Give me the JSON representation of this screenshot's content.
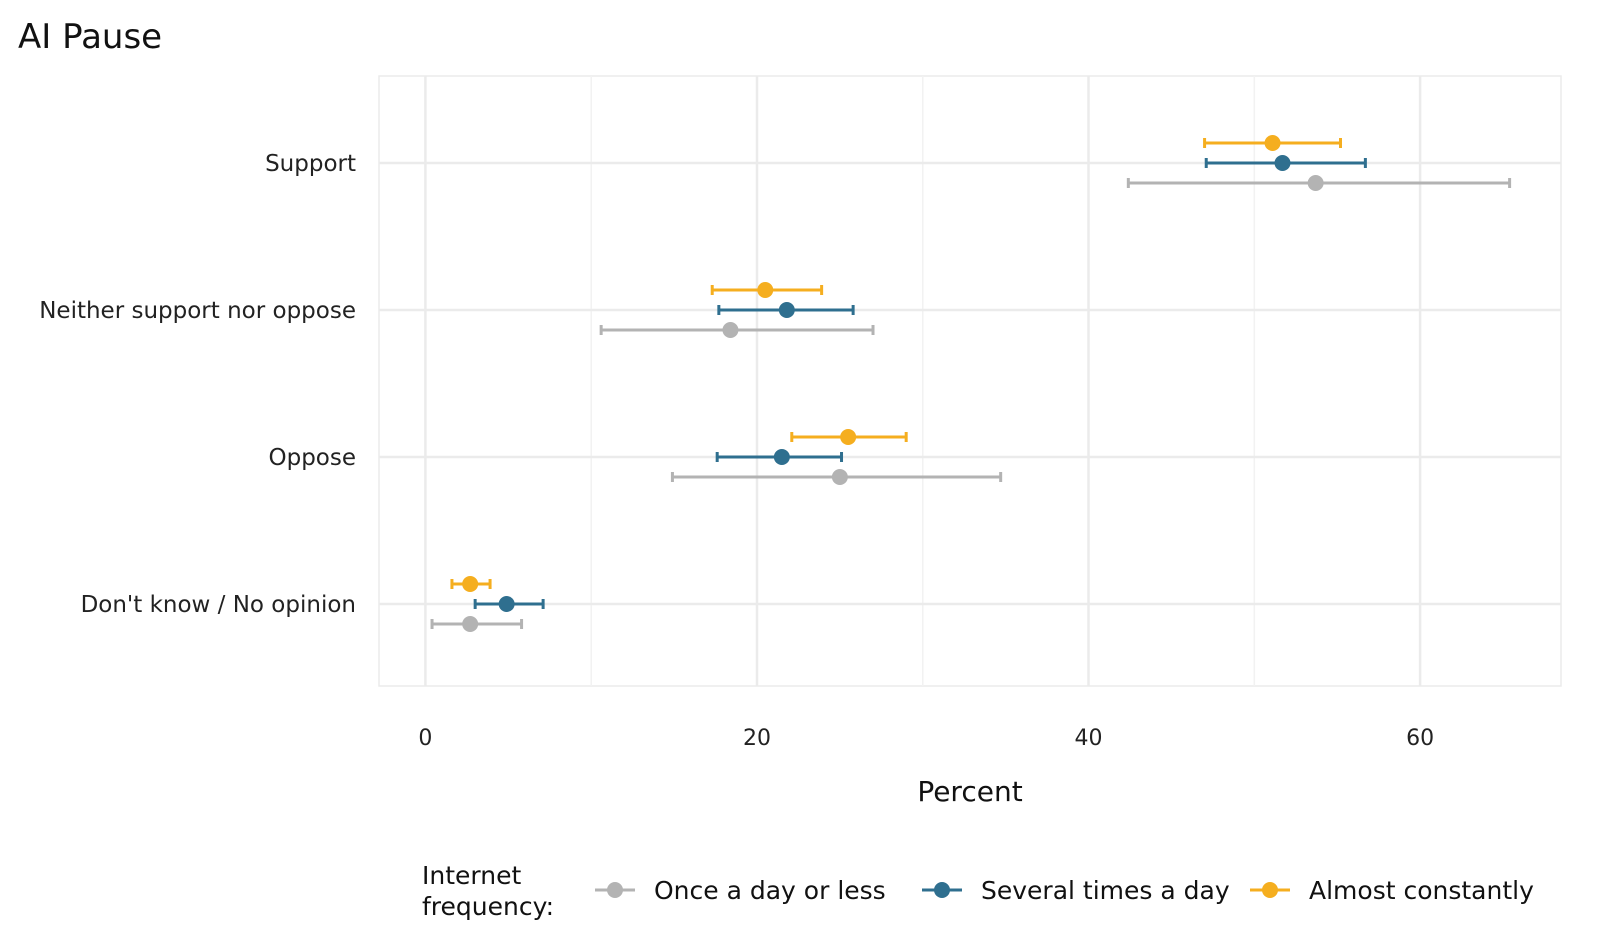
{
  "chart_data": {
    "type": "scatter",
    "subtype": "dot-with-error-bars",
    "title": "AI Pause",
    "xlabel": "Percent",
    "ylabel": "",
    "xlim": [
      -2.8,
      68.5
    ],
    "xticks": [
      0,
      20,
      40,
      60
    ],
    "grid": true,
    "legend_position": "bottom",
    "legend_title_lines": [
      "Internet",
      "frequency:"
    ],
    "categories": [
      "Support",
      "Neither support nor oppose",
      "Oppose",
      "Don't know / No opinion"
    ],
    "series": [
      {
        "name": "Once a day or less",
        "color": "#b3b3b3",
        "values": [
          53.7,
          18.4,
          25.0,
          2.7
        ],
        "lower": [
          42.4,
          10.6,
          14.9,
          0.4
        ],
        "upper": [
          65.4,
          27.0,
          34.7,
          5.8
        ]
      },
      {
        "name": "Several times a day",
        "color": "#2f6f8f",
        "values": [
          51.7,
          21.8,
          21.5,
          4.9
        ],
        "lower": [
          47.1,
          17.7,
          17.6,
          3.0
        ],
        "upper": [
          56.7,
          25.8,
          25.1,
          7.1
        ]
      },
      {
        "name": "Almost constantly",
        "color": "#f5ae1f",
        "values": [
          51.1,
          20.5,
          25.5,
          2.7
        ],
        "lower": [
          47.0,
          17.3,
          22.1,
          1.6
        ],
        "upper": [
          55.2,
          23.9,
          29.0,
          3.9
        ]
      }
    ]
  }
}
